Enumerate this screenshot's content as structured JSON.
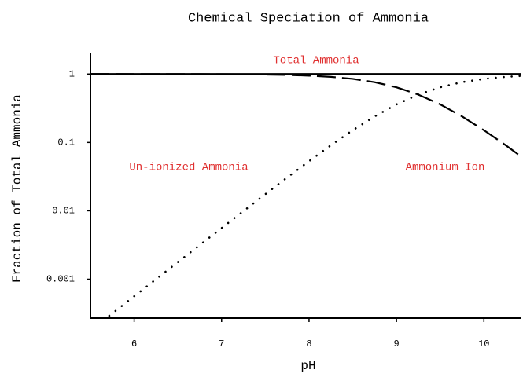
{
  "chart_data": {
    "type": "line",
    "title": "Chemical Speciation of Ammonia",
    "xlabel": "pH",
    "ylabel": "Fraction of Total Ammonia",
    "x": [
      5.5,
      5.75,
      6.0,
      6.25,
      6.5,
      6.75,
      7.0,
      7.25,
      7.5,
      7.75,
      8.0,
      8.25,
      8.5,
      8.75,
      9.0,
      9.25,
      9.5,
      9.75,
      10.0,
      10.25,
      10.42
    ],
    "series": [
      {
        "name": "Total Ammonia",
        "color": "#000000",
        "style": "solid",
        "values": [
          1,
          1,
          1,
          1,
          1,
          1,
          1,
          1,
          1,
          1,
          1,
          1,
          1,
          1,
          1,
          1,
          1,
          1,
          1,
          1,
          1
        ]
      },
      {
        "name": "Un-ionized Ammonia",
        "color": "#000000",
        "style": "dotted",
        "values": [
          0.000178,
          0.000316,
          0.000562,
          0.000999,
          0.00178,
          0.00315,
          0.00559,
          0.0099,
          0.0175,
          0.0307,
          0.0532,
          0.0909,
          0.151,
          0.24,
          0.36,
          0.5,
          0.64,
          0.76,
          0.849,
          0.909,
          0.937
        ]
      },
      {
        "name": "Ammonium Ion",
        "color": "#000000",
        "style": "dashed",
        "values": [
          0.99982,
          0.99968,
          0.99944,
          0.999,
          0.99822,
          0.99685,
          0.99441,
          0.9901,
          0.9825,
          0.9693,
          0.9468,
          0.9091,
          0.849,
          0.76,
          0.64,
          0.5,
          0.36,
          0.24,
          0.151,
          0.0909,
          0.063
        ]
      }
    ],
    "xlim": [
      5.5,
      10.42
    ],
    "xticks": [
      6,
      7,
      8,
      9,
      10
    ],
    "ylim": [
      0.00027,
      1.9
    ],
    "yticks": [
      1,
      0.1,
      0.01,
      0.001
    ],
    "ylog": true,
    "grid": false,
    "annotation_color": "#e03030"
  }
}
